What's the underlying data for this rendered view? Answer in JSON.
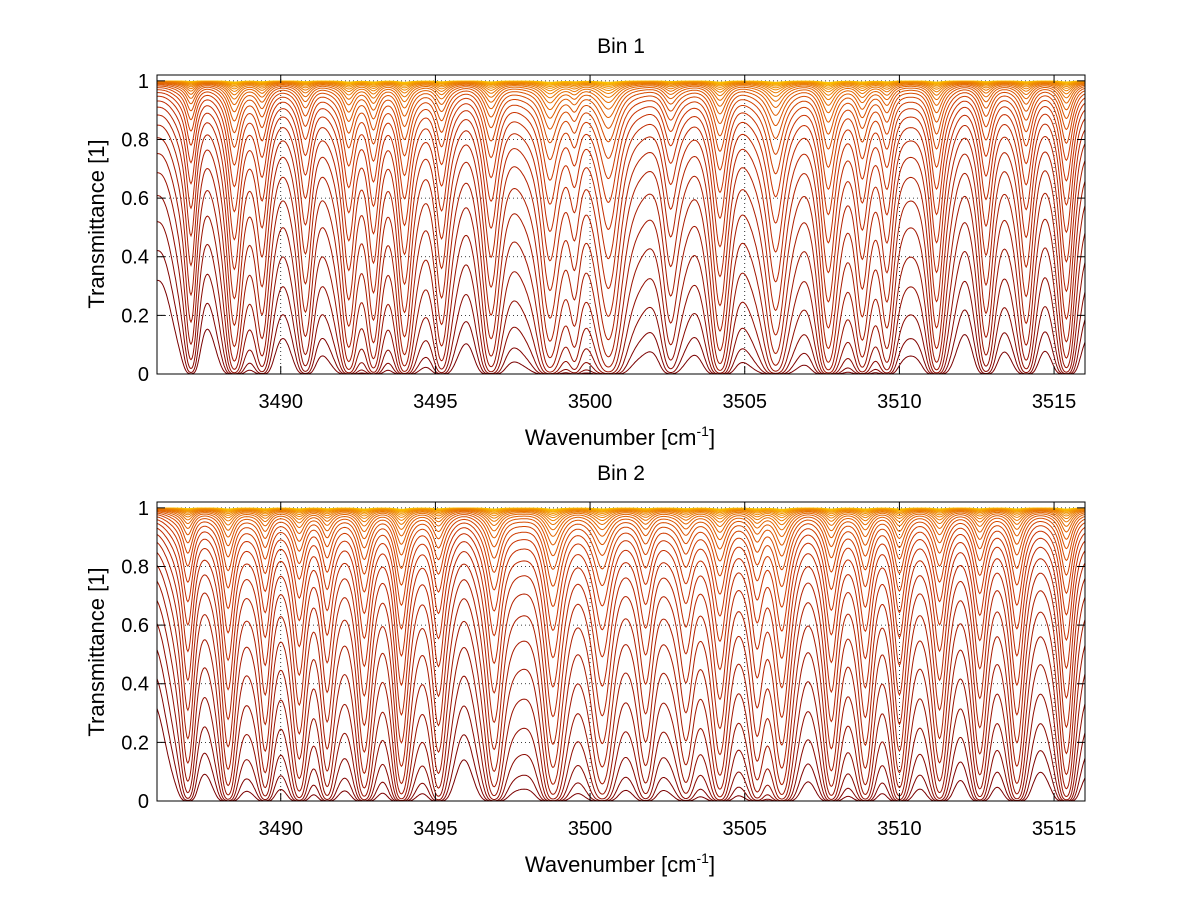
{
  "chart_data": [
    {
      "type": "line",
      "title": "Bin 1",
      "xlabel": "Wavenumber [cm",
      "xlabel_sup": "-1",
      "xlabel_close": "]",
      "ylabel": "Transmittance [1]",
      "xlim": [
        3486,
        3516
      ],
      "ylim": [
        0,
        1.02
      ],
      "xticks": [
        3490,
        3495,
        3500,
        3505,
        3510,
        3515
      ],
      "xtick_labels": [
        "3490",
        "3495",
        "3500",
        "3505",
        "3510",
        "3515"
      ],
      "yticks": [
        0,
        0.2,
        0.4,
        0.6,
        0.8,
        1
      ],
      "ytick_labels": [
        "0",
        "0.2",
        "0.4",
        "0.6",
        "0.8",
        "1"
      ],
      "grid": true,
      "line_count": 30,
      "colormap": [
        "#7a0000",
        "#a81a00",
        "#c83000",
        "#e06000",
        "#f09000",
        "#ffd000"
      ],
      "absorption_lines": [
        {
          "x": 3487.1,
          "depth": 0.45,
          "width": 0.18
        },
        {
          "x": 3488.5,
          "depth": 0.9,
          "width": 0.22
        },
        {
          "x": 3489.4,
          "depth": 0.5,
          "width": 0.2
        },
        {
          "x": 3490.8,
          "depth": 0.55,
          "width": 0.22
        },
        {
          "x": 3492.2,
          "depth": 0.85,
          "width": 0.22
        },
        {
          "x": 3493.0,
          "depth": 0.75,
          "width": 0.2
        },
        {
          "x": 3494.0,
          "depth": 1.0,
          "width": 0.22
        },
        {
          "x": 3495.2,
          "depth": 0.6,
          "width": 0.22
        },
        {
          "x": 3496.8,
          "depth": 0.75,
          "width": 0.25
        },
        {
          "x": 3498.7,
          "depth": 1.1,
          "width": 0.3
        },
        {
          "x": 3499.5,
          "depth": 0.45,
          "width": 0.2
        },
        {
          "x": 3500.6,
          "depth": 1.05,
          "width": 0.35
        },
        {
          "x": 3502.6,
          "depth": 0.4,
          "width": 0.25
        },
        {
          "x": 3504.2,
          "depth": 0.95,
          "width": 0.25
        },
        {
          "x": 3506.0,
          "depth": 1.0,
          "width": 0.3
        },
        {
          "x": 3507.7,
          "depth": 1.2,
          "width": 0.25
        },
        {
          "x": 3508.8,
          "depth": 0.7,
          "width": 0.22
        },
        {
          "x": 3509.6,
          "depth": 0.65,
          "width": 0.22
        },
        {
          "x": 3511.2,
          "depth": 0.9,
          "width": 0.22
        },
        {
          "x": 3512.8,
          "depth": 0.55,
          "width": 0.22
        },
        {
          "x": 3514.1,
          "depth": 0.6,
          "width": 0.22
        },
        {
          "x": 3515.4,
          "depth": 0.85,
          "width": 0.22
        }
      ]
    },
    {
      "type": "line",
      "title": "Bin 2",
      "xlabel": "Wavenumber [cm",
      "xlabel_sup": "-1",
      "xlabel_close": "]",
      "ylabel": "Transmittance [1]",
      "xlim": [
        3486,
        3516
      ],
      "ylim": [
        0,
        1.02
      ],
      "xticks": [
        3490,
        3495,
        3500,
        3505,
        3510,
        3515
      ],
      "xtick_labels": [
        "3490",
        "3495",
        "3500",
        "3505",
        "3510",
        "3515"
      ],
      "yticks": [
        0,
        0.2,
        0.4,
        0.6,
        0.8,
        1
      ],
      "ytick_labels": [
        "0",
        "0.2",
        "0.4",
        "0.6",
        "0.8",
        "1"
      ],
      "grid": true,
      "line_count": 30,
      "colormap": [
        "#7a0000",
        "#a81a00",
        "#c83000",
        "#e06000",
        "#f09000",
        "#ffd000"
      ],
      "absorption_lines": [
        {
          "x": 3487.0,
          "depth": 0.55,
          "width": 0.2
        },
        {
          "x": 3488.3,
          "depth": 0.85,
          "width": 0.22
        },
        {
          "x": 3489.5,
          "depth": 0.6,
          "width": 0.2
        },
        {
          "x": 3490.6,
          "depth": 0.7,
          "width": 0.22
        },
        {
          "x": 3491.5,
          "depth": 0.55,
          "width": 0.2
        },
        {
          "x": 3492.7,
          "depth": 0.85,
          "width": 0.22
        },
        {
          "x": 3493.9,
          "depth": 1.05,
          "width": 0.22
        },
        {
          "x": 3495.1,
          "depth": 0.6,
          "width": 0.22
        },
        {
          "x": 3496.9,
          "depth": 0.85,
          "width": 0.25
        },
        {
          "x": 3498.8,
          "depth": 1.1,
          "width": 0.28
        },
        {
          "x": 3500.4,
          "depth": 0.75,
          "width": 0.3
        },
        {
          "x": 3501.8,
          "depth": 0.55,
          "width": 0.25
        },
        {
          "x": 3503.1,
          "depth": 0.5,
          "width": 0.25
        },
        {
          "x": 3504.2,
          "depth": 0.9,
          "width": 0.25
        },
        {
          "x": 3505.4,
          "depth": 0.6,
          "width": 0.22
        },
        {
          "x": 3506.2,
          "depth": 1.05,
          "width": 0.25
        },
        {
          "x": 3507.8,
          "depth": 0.8,
          "width": 0.22
        },
        {
          "x": 3508.9,
          "depth": 0.75,
          "width": 0.22
        },
        {
          "x": 3510.0,
          "depth": 0.85,
          "width": 0.22
        },
        {
          "x": 3511.3,
          "depth": 0.7,
          "width": 0.22
        },
        {
          "x": 3512.6,
          "depth": 0.65,
          "width": 0.22
        },
        {
          "x": 3513.8,
          "depth": 0.75,
          "width": 0.22
        },
        {
          "x": 3515.4,
          "depth": 0.95,
          "width": 0.22
        }
      ]
    }
  ]
}
